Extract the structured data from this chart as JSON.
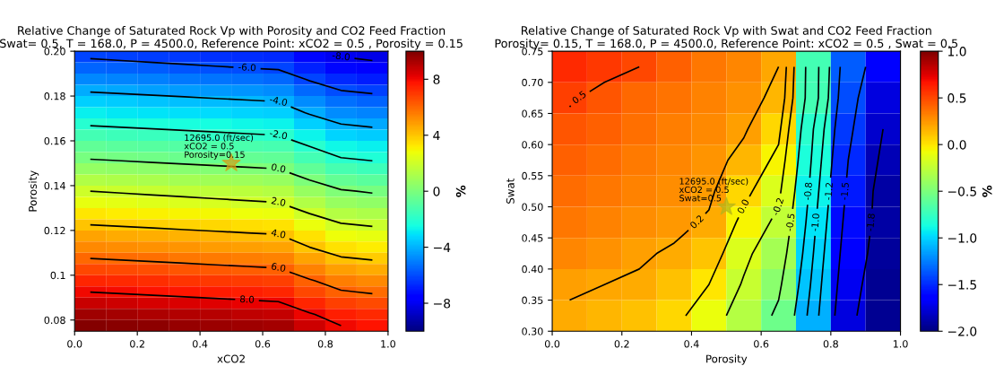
{
  "chart_data": [
    {
      "type": "heatmap",
      "title": "Relative Change of Saturated Rock Vp with Porosity and CO2 Feed Fraction",
      "subtitle": "Swat= 0.5, T = 168.0, P = 4500.0, Reference Point: xCO2 = 0.5 , Porosity = 0.15",
      "xlabel": "xCO2",
      "ylabel": "Porosity",
      "clabel": "%",
      "xlim": [
        0.0,
        1.0
      ],
      "ylim": [
        0.075,
        0.2
      ],
      "xticks": [
        {
          "value": 0,
          "label": "0.0"
        },
        {
          "value": 0.2,
          "label": "0.2"
        },
        {
          "value": 0.4,
          "label": "0.4"
        },
        {
          "value": 0.6,
          "label": "0.6"
        },
        {
          "value": 0.8,
          "label": "0.8"
        },
        {
          "value": 1,
          "label": "1.0"
        }
      ],
      "yticks": [
        0.08,
        0.1,
        0.12,
        0.14,
        0.16,
        0.18,
        {
          "value": 0.2,
          "label": "0.20"
        }
      ],
      "clim": [
        -10,
        10
      ],
      "cticks": [
        {
          "value": -8,
          "label": "−8"
        },
        {
          "value": -4,
          "label": "−4"
        },
        0,
        4,
        8
      ],
      "cells": [
        [
          -6.1,
          -6.2,
          -6.3,
          -6.4,
          -6.5,
          -6.6,
          -6.7,
          -7.4,
          -8.0,
          -8.2
        ],
        [
          -5.5,
          -5.6,
          -5.7,
          -5.8,
          -5.9,
          -6.0,
          -6.1,
          -6.8,
          -7.4,
          -7.6
        ],
        [
          -4.8,
          -4.9,
          -5.0,
          -5.1,
          -5.2,
          -5.3,
          -5.4,
          -6.1,
          -6.7,
          -6.9
        ],
        [
          -4.1,
          -4.2,
          -4.3,
          -4.4,
          -4.5,
          -4.6,
          -4.7,
          -5.4,
          -6.0,
          -6.2
        ],
        [
          -3.4,
          -3.5,
          -3.6,
          -3.7,
          -3.8,
          -3.9,
          -4.0,
          -4.7,
          -5.3,
          -5.5
        ],
        [
          -2.8,
          -2.9,
          -3.0,
          -3.1,
          -3.2,
          -3.3,
          -3.4,
          -4.1,
          -4.7,
          -4.9
        ],
        [
          -2.1,
          -2.2,
          -2.3,
          -2.4,
          -2.5,
          -2.6,
          -2.7,
          -3.4,
          -4.0,
          -4.2
        ],
        [
          -1.4,
          -1.5,
          -1.6,
          -1.7,
          -1.8,
          -1.9,
          -2.0,
          -2.7,
          -3.3,
          -3.5
        ],
        [
          -0.7,
          -0.8,
          -0.9,
          -1.0,
          -1.1,
          -1.2,
          -1.3,
          -2.0,
          -2.6,
          -2.8
        ],
        [
          -0.1,
          -0.2,
          -0.3,
          -0.4,
          -0.5,
          -0.6,
          -0.7,
          -1.4,
          -2.0,
          -2.2
        ],
        [
          0.6,
          0.5,
          0.4,
          0.3,
          0.2,
          0.1,
          0.0,
          -0.7,
          -1.3,
          -1.5
        ],
        [
          1.3,
          1.2,
          1.1,
          1.0,
          0.9,
          0.8,
          0.7,
          0.0,
          -0.6,
          -0.8
        ],
        [
          2.0,
          1.9,
          1.8,
          1.7,
          1.6,
          1.5,
          1.4,
          0.7,
          0.1,
          -0.1
        ],
        [
          2.6,
          2.5,
          2.4,
          2.3,
          2.2,
          2.1,
          2.0,
          1.3,
          0.7,
          0.5
        ],
        [
          3.3,
          3.2,
          3.1,
          3.0,
          2.9,
          2.8,
          2.7,
          2.0,
          1.4,
          1.2
        ],
        [
          4.0,
          3.9,
          3.8,
          3.7,
          3.6,
          3.5,
          3.4,
          2.7,
          2.1,
          1.9
        ],
        [
          4.7,
          4.6,
          4.5,
          4.4,
          4.3,
          4.2,
          4.1,
          3.4,
          2.8,
          2.6
        ],
        [
          5.3,
          5.2,
          5.1,
          5.0,
          4.9,
          4.8,
          4.7,
          4.0,
          3.4,
          3.2
        ],
        [
          6.0,
          5.9,
          5.8,
          5.7,
          5.6,
          5.5,
          5.4,
          4.7,
          4.1,
          3.9
        ],
        [
          6.7,
          6.6,
          6.5,
          6.4,
          6.3,
          6.2,
          6.1,
          5.4,
          4.8,
          4.6
        ],
        [
          7.4,
          7.3,
          7.2,
          7.1,
          7.0,
          6.9,
          6.8,
          6.1,
          5.5,
          5.3
        ],
        [
          8.0,
          7.9,
          7.8,
          7.7,
          7.6,
          7.5,
          7.4,
          6.7,
          6.1,
          5.9
        ],
        [
          8.7,
          8.6,
          8.5,
          8.4,
          8.3,
          8.2,
          8.1,
          7.4,
          6.8,
          6.6
        ],
        [
          9.4,
          9.3,
          9.2,
          9.1,
          9.0,
          8.9,
          8.8,
          8.1,
          7.5,
          7.3
        ],
        [
          9.9,
          9.8,
          9.7,
          9.6,
          9.5,
          9.4,
          9.3,
          8.6,
          8.0,
          7.8
        ]
      ],
      "series": [
        {
          "type": "scatter",
          "x": [
            0.5
          ],
          "values": [
            0.15
          ],
          "color": "#d4a017",
          "marker": "star"
        }
      ],
      "annotations": [
        "-6.0",
        "-4.0",
        "-2.0",
        "0.0",
        "2.0",
        "4.0",
        "6.0",
        "8.0",
        "-8.0",
        "12695.0 (ft/sec)\nxCO2 = 0.5\nPorosity=0.15"
      ]
    },
    {
      "type": "heatmap",
      "title": "Relative Change of Saturated Rock Vp with Swat and CO2 Feed Fraction",
      "subtitle": "Porosity= 0.15, T = 168.0, P = 4500.0, Reference Point: xCO2 = 0.5 , Swat = 0.5",
      "xlabel": "Porosity",
      "ylabel": "Swat",
      "clabel": "%",
      "xlim": [
        0.0,
        1.0
      ],
      "ylim": [
        0.3,
        0.75
      ],
      "xticks": [
        {
          "value": 0,
          "label": "0.0"
        },
        {
          "value": 0.2,
          "label": "0.2"
        },
        {
          "value": 0.4,
          "label": "0.4"
        },
        {
          "value": 0.6,
          "label": "0.6"
        },
        {
          "value": 0.8,
          "label": "0.8"
        },
        {
          "value": 1,
          "label": "1.0"
        }
      ],
      "yticks": [
        {
          "value": 0.3,
          "label": "0.30"
        },
        0.35,
        {
          "value": 0.4,
          "label": "0.40"
        },
        0.45,
        {
          "value": 0.5,
          "label": "0.50"
        },
        0.55,
        {
          "value": 0.6,
          "label": "0.60"
        },
        0.65,
        {
          "value": 0.7,
          "label": "0.70"
        },
        0.75
      ],
      "clim": [
        -2,
        1
      ],
      "cticks": [
        {
          "value": -2,
          "label": "−2.0"
        },
        {
          "value": -1.5,
          "label": "−1.5"
        },
        {
          "value": -1,
          "label": "−1.0"
        },
        {
          "value": -0.5,
          "label": "−0.5"
        },
        {
          "value": 0,
          "label": "0.0"
        },
        0.5,
        {
          "value": 1,
          "label": "1.0"
        }
      ],
      "cells": [
        [
          0.6,
          0.55,
          0.5,
          0.42,
          0.35,
          0.3,
          0.2,
          -0.7,
          -1.35,
          -1.65
        ],
        [
          0.52,
          0.45,
          0.4,
          0.36,
          0.32,
          0.27,
          0.15,
          -0.7,
          -1.4,
          -1.75
        ],
        [
          0.45,
          0.42,
          0.37,
          0.33,
          0.29,
          0.22,
          0.05,
          -0.8,
          -1.45,
          -1.8
        ],
        [
          0.42,
          0.38,
          0.34,
          0.3,
          0.26,
          0.15,
          -0.05,
          -0.85,
          -1.5,
          -1.85
        ],
        [
          0.38,
          0.35,
          0.31,
          0.28,
          0.23,
          0.05,
          -0.15,
          -0.9,
          -1.55,
          -1.9
        ],
        [
          0.35,
          0.32,
          0.28,
          0.24,
          0.18,
          -0.05,
          -0.25,
          -0.95,
          -1.6,
          -1.9
        ],
        [
          0.3,
          0.27,
          0.22,
          0.18,
          0.1,
          -0.15,
          -0.35,
          -1.0,
          -1.65,
          -1.92
        ],
        [
          0.22,
          0.2,
          0.18,
          0.12,
          0.0,
          -0.22,
          -0.45,
          -1.05,
          -1.7,
          -1.95
        ],
        [
          0.18,
          0.15,
          0.12,
          0.05,
          -0.1,
          -0.3,
          -0.55,
          -1.1,
          -1.75,
          -1.95
        ]
      ],
      "series": [
        {
          "type": "scatter",
          "x": [
            0.5
          ],
          "values": [
            0.5
          ],
          "color": "#b5b51a",
          "marker": "star"
        }
      ],
      "annotations": [
        "0.5",
        "0.2",
        "0.0",
        "-0.2",
        "-0.5",
        "-0.8",
        "-1.2",
        "-1.0",
        "-1.5",
        "-1.8",
        "12695.0 (ft/sec)\nxCO2 = 0.5\nSwat=0.5"
      ]
    }
  ]
}
